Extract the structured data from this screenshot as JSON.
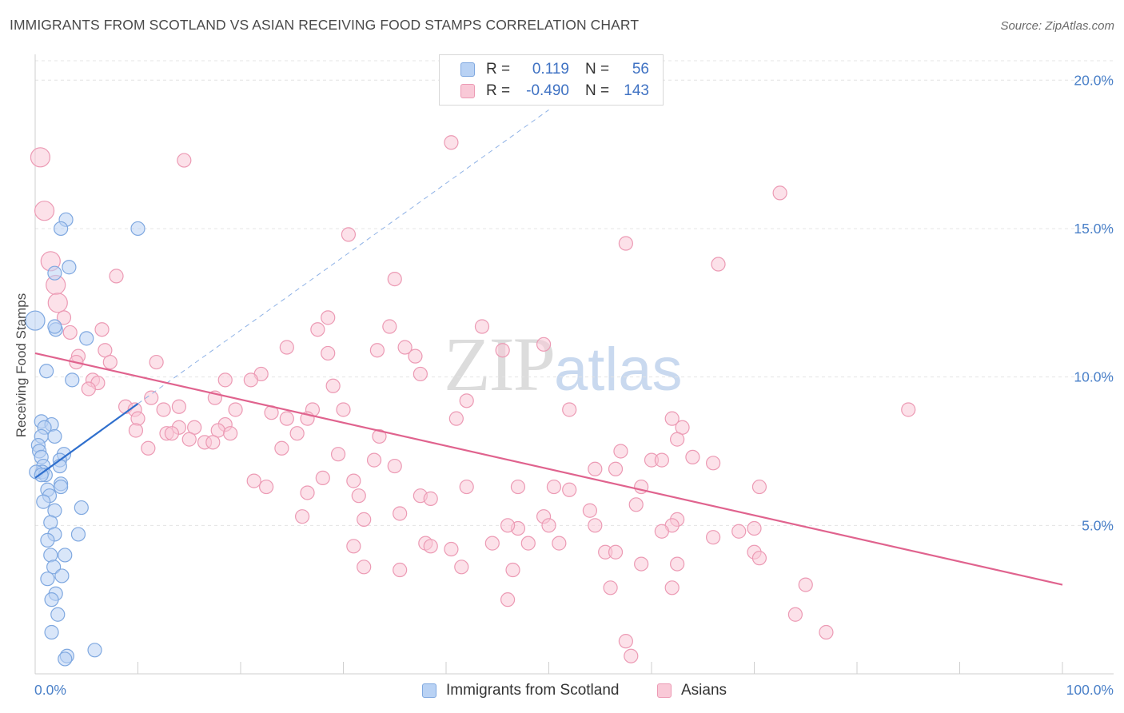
{
  "title": "IMMIGRANTS FROM SCOTLAND VS ASIAN RECEIVING FOOD STAMPS CORRELATION CHART",
  "source": "Source: ZipAtlas.com",
  "watermark": {
    "zip": "ZIP",
    "atlas": "atlas"
  },
  "legend": {
    "rows": [
      {
        "r_label": "R =",
        "r_value": "0.119",
        "n_label": "N =",
        "n_value": "56"
      },
      {
        "r_label": "R =",
        "r_value": "-0.490",
        "n_label": "N =",
        "n_value": "143"
      }
    ]
  },
  "bottom_legend": [
    "Immigrants from Scotland",
    "Asians"
  ],
  "colors": {
    "blue_fill": "#b9d2f4",
    "blue_stroke": "#7fa8e0",
    "blue_line": "#2f6fcd",
    "pink_fill": "#f9c9d7",
    "pink_stroke": "#ec9ab4",
    "pink_line": "#e0638e",
    "grid": "#e4e4e4",
    "axis_text": "#4a80c8"
  },
  "chart_data": {
    "type": "scatter",
    "title": "IMMIGRANTS FROM SCOTLAND VS ASIAN RECEIVING FOOD STAMPS CORRELATION CHART",
    "xlabel": "",
    "ylabel": "Receiving Food Stamps",
    "xlim": [
      0,
      100
    ],
    "ylim": [
      0,
      20.6
    ],
    "x_tick_labels": [
      "0.0%",
      "100.0%"
    ],
    "y_ticks": [
      5,
      10,
      15,
      20
    ],
    "y_tick_labels": [
      "5.0%",
      "10.0%",
      "15.0%",
      "20.0%"
    ],
    "grid": true,
    "legend_position": "top-center",
    "series": [
      {
        "name": "Immigrants from Scotland",
        "color": "#b9d2f4",
        "trend": {
          "x": [
            0,
            10
          ],
          "y": [
            6.6,
            9.1
          ],
          "extended_to": [
            50,
            19.0
          ]
        },
        "points": [
          [
            0.0,
            11.9
          ],
          [
            3.0,
            15.3
          ],
          [
            2.5,
            15.0
          ],
          [
            10.0,
            15.0
          ],
          [
            3.3,
            13.7
          ],
          [
            1.9,
            13.5
          ],
          [
            2.0,
            11.6
          ],
          [
            1.9,
            11.7
          ],
          [
            5.0,
            11.3
          ],
          [
            1.1,
            10.2
          ],
          [
            3.6,
            9.9
          ],
          [
            0.6,
            8.5
          ],
          [
            1.6,
            8.4
          ],
          [
            0.9,
            8.3
          ],
          [
            1.9,
            8.0
          ],
          [
            0.6,
            8.0
          ],
          [
            0.3,
            7.7
          ],
          [
            0.4,
            7.5
          ],
          [
            2.8,
            7.4
          ],
          [
            0.6,
            7.3
          ],
          [
            2.4,
            7.2
          ],
          [
            0.8,
            7.0
          ],
          [
            2.4,
            7.0
          ],
          [
            0.7,
            6.8
          ],
          [
            0.1,
            6.8
          ],
          [
            1.0,
            6.7
          ],
          [
            0.6,
            6.7
          ],
          [
            2.5,
            6.4
          ],
          [
            2.5,
            6.3
          ],
          [
            1.2,
            6.2
          ],
          [
            1.4,
            6.0
          ],
          [
            0.8,
            5.8
          ],
          [
            4.5,
            5.6
          ],
          [
            1.9,
            5.5
          ],
          [
            1.5,
            5.1
          ],
          [
            1.9,
            4.7
          ],
          [
            4.2,
            4.7
          ],
          [
            1.2,
            4.5
          ],
          [
            1.5,
            4.0
          ],
          [
            2.9,
            4.0
          ],
          [
            1.8,
            3.6
          ],
          [
            2.6,
            3.3
          ],
          [
            1.2,
            3.2
          ],
          [
            2.0,
            2.7
          ],
          [
            1.6,
            2.5
          ],
          [
            2.2,
            2.0
          ],
          [
            1.6,
            1.4
          ],
          [
            5.8,
            0.8
          ],
          [
            3.1,
            0.6
          ],
          [
            2.9,
            0.5
          ]
        ]
      },
      {
        "name": "Asians",
        "color": "#f9c9d7",
        "trend": {
          "x": [
            0,
            100
          ],
          "y": [
            10.8,
            3.0
          ]
        },
        "points": [
          [
            0.5,
            17.4
          ],
          [
            14.5,
            17.3
          ],
          [
            40.5,
            17.9
          ],
          [
            72.5,
            16.2
          ],
          [
            0.9,
            15.6
          ],
          [
            30.5,
            14.8
          ],
          [
            57.5,
            14.5
          ],
          [
            66.5,
            13.8
          ],
          [
            1.5,
            13.9
          ],
          [
            7.9,
            13.4
          ],
          [
            2.0,
            13.1
          ],
          [
            35.0,
            13.3
          ],
          [
            2.2,
            12.5
          ],
          [
            2.8,
            12.0
          ],
          [
            28.5,
            12.0
          ],
          [
            34.5,
            11.7
          ],
          [
            43.5,
            11.7
          ],
          [
            27.5,
            11.6
          ],
          [
            6.5,
            11.6
          ],
          [
            3.4,
            11.5
          ],
          [
            49.5,
            11.1
          ],
          [
            36.0,
            11.0
          ],
          [
            24.5,
            11.0
          ],
          [
            45.5,
            10.9
          ],
          [
            33.3,
            10.9
          ],
          [
            28.5,
            10.8
          ],
          [
            6.8,
            10.9
          ],
          [
            4.2,
            10.7
          ],
          [
            4.0,
            10.5
          ],
          [
            11.8,
            10.5
          ],
          [
            37.0,
            10.7
          ],
          [
            7.3,
            10.5
          ],
          [
            37.5,
            10.1
          ],
          [
            22.0,
            10.1
          ],
          [
            18.5,
            9.9
          ],
          [
            21.0,
            9.9
          ],
          [
            29.0,
            9.7
          ],
          [
            5.6,
            9.9
          ],
          [
            6.1,
            9.8
          ],
          [
            5.2,
            9.6
          ],
          [
            17.5,
            9.3
          ],
          [
            11.3,
            9.3
          ],
          [
            8.8,
            9.0
          ],
          [
            14.0,
            9.0
          ],
          [
            27.0,
            8.9
          ],
          [
            12.5,
            8.9
          ],
          [
            9.7,
            8.9
          ],
          [
            19.5,
            8.9
          ],
          [
            23.0,
            8.8
          ],
          [
            42.0,
            9.2
          ],
          [
            52.0,
            8.9
          ],
          [
            85.0,
            8.9
          ],
          [
            62.0,
            8.6
          ],
          [
            24.5,
            8.6
          ],
          [
            26.5,
            8.6
          ],
          [
            30.0,
            8.9
          ],
          [
            41.0,
            8.6
          ],
          [
            10.0,
            8.6
          ],
          [
            18.5,
            8.4
          ],
          [
            14.0,
            8.3
          ],
          [
            15.5,
            8.3
          ],
          [
            9.8,
            8.2
          ],
          [
            12.8,
            8.1
          ],
          [
            13.3,
            8.1
          ],
          [
            17.8,
            8.2
          ],
          [
            19.0,
            8.1
          ],
          [
            25.5,
            8.1
          ],
          [
            63.0,
            8.3
          ],
          [
            33.5,
            8.0
          ],
          [
            15.0,
            7.9
          ],
          [
            16.5,
            7.8
          ],
          [
            17.3,
            7.8
          ],
          [
            62.5,
            7.9
          ],
          [
            11.0,
            7.6
          ],
          [
            24.0,
            7.6
          ],
          [
            29.5,
            7.4
          ],
          [
            57.0,
            7.5
          ],
          [
            64.0,
            7.3
          ],
          [
            60.0,
            7.2
          ],
          [
            61.0,
            7.2
          ],
          [
            33.0,
            7.2
          ],
          [
            35.0,
            7.0
          ],
          [
            54.5,
            6.9
          ],
          [
            56.5,
            6.9
          ],
          [
            66.0,
            7.1
          ],
          [
            28.0,
            6.6
          ],
          [
            21.3,
            6.5
          ],
          [
            31.0,
            6.5
          ],
          [
            47.0,
            6.3
          ],
          [
            50.5,
            6.3
          ],
          [
            59.0,
            6.3
          ],
          [
            42.0,
            6.3
          ],
          [
            52.0,
            6.2
          ],
          [
            70.5,
            6.3
          ],
          [
            26.5,
            6.1
          ],
          [
            31.5,
            6.0
          ],
          [
            37.5,
            6.0
          ],
          [
            22.5,
            6.3
          ],
          [
            38.5,
            5.9
          ],
          [
            58.5,
            5.7
          ],
          [
            54.0,
            5.5
          ],
          [
            35.5,
            5.4
          ],
          [
            49.5,
            5.3
          ],
          [
            32.0,
            5.2
          ],
          [
            62.5,
            5.2
          ],
          [
            26.0,
            5.3
          ],
          [
            50.0,
            5.0
          ],
          [
            54.5,
            5.0
          ],
          [
            62.0,
            5.0
          ],
          [
            61.0,
            4.8
          ],
          [
            68.5,
            4.8
          ],
          [
            70.0,
            4.9
          ],
          [
            47.0,
            4.9
          ],
          [
            46.0,
            5.0
          ],
          [
            66.0,
            4.6
          ],
          [
            44.5,
            4.4
          ],
          [
            48.0,
            4.4
          ],
          [
            51.0,
            4.4
          ],
          [
            55.5,
            4.1
          ],
          [
            56.5,
            4.1
          ],
          [
            70.0,
            4.1
          ],
          [
            40.5,
            4.2
          ],
          [
            38.0,
            4.4
          ],
          [
            31.0,
            4.3
          ],
          [
            38.5,
            4.3
          ],
          [
            70.5,
            3.9
          ],
          [
            59.0,
            3.7
          ],
          [
            62.5,
            3.7
          ],
          [
            41.5,
            3.6
          ],
          [
            46.5,
            3.5
          ],
          [
            35.5,
            3.5
          ],
          [
            32.0,
            3.6
          ],
          [
            62.0,
            2.9
          ],
          [
            56.0,
            2.9
          ],
          [
            75.0,
            3.0
          ],
          [
            46.0,
            2.5
          ],
          [
            74.0,
            2.0
          ],
          [
            77.0,
            1.4
          ],
          [
            57.5,
            1.1
          ],
          [
            58.0,
            0.6
          ]
        ]
      }
    ]
  }
}
